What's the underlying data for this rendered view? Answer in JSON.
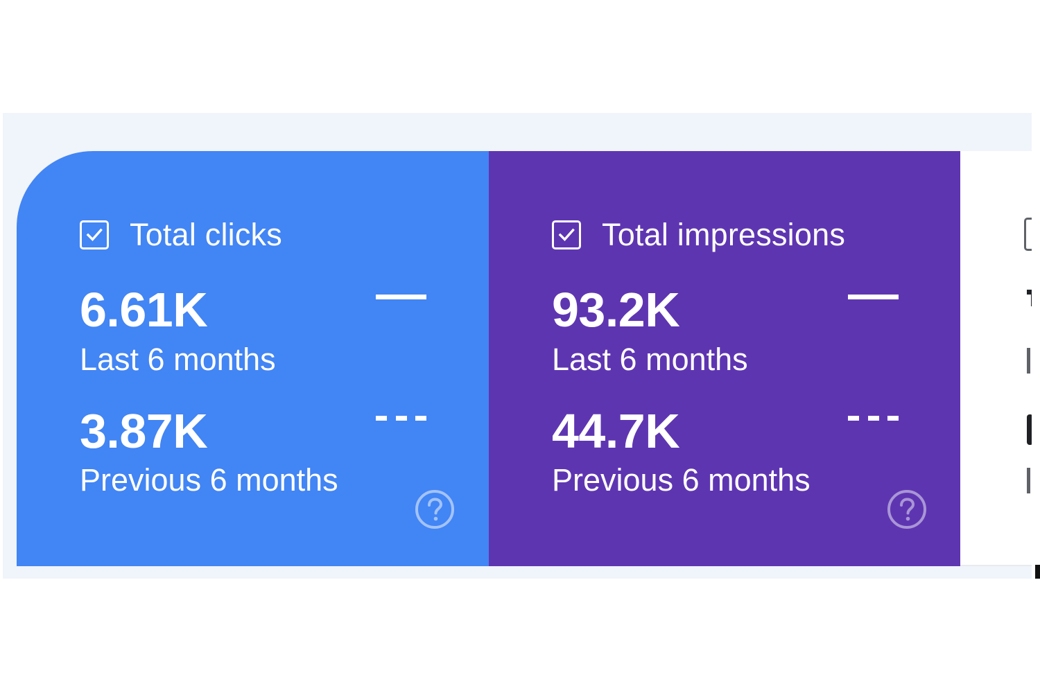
{
  "cards": [
    {
      "title": "Total clicks",
      "checked": true,
      "color": "#4285f4",
      "current_value": "6.61K",
      "current_label": "Last 6 months",
      "previous_value": "3.87K",
      "previous_label": "Previous 6 months",
      "legend_current": "solid-line",
      "legend_previous": "dashed-line",
      "help_icon": "help-circle-icon"
    },
    {
      "title": "Total impressions",
      "checked": true,
      "color": "#5e35b1",
      "current_value": "93.2K",
      "current_label": "Last 6 months",
      "previous_value": "44.7K",
      "previous_label": "Previous 6 months",
      "legend_current": "solid-line",
      "legend_previous": "dashed-line",
      "help_icon": "help-circle-icon"
    }
  ],
  "partial_card": {
    "checked": false,
    "color": "#ffffff"
  }
}
